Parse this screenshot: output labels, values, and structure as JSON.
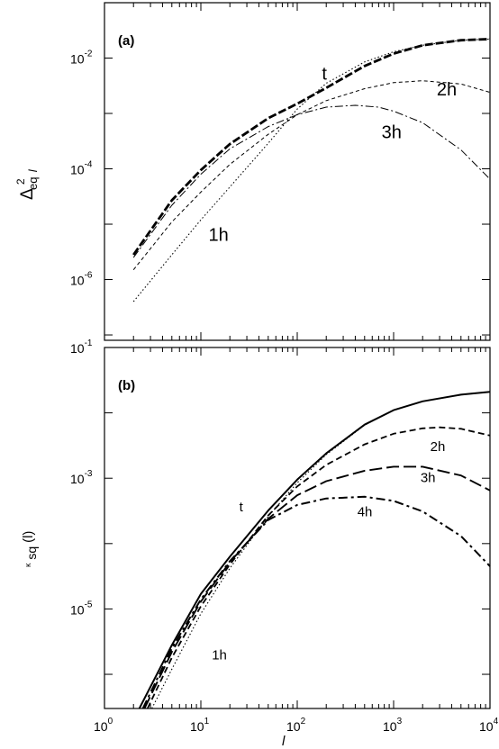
{
  "chart_data": [
    {
      "panel": "(a)",
      "type": "line",
      "ylabel_base": "Δ",
      "ylabel_sup": "2",
      "ylabel_sub": "eq",
      "ylabel_sub_var": "l",
      "xscale": "log",
      "yscale": "log",
      "xlim": [
        1,
        10000
      ],
      "ylim": [
        8e-08,
        0.1
      ],
      "yticks": [
        {
          "value": 1e-06,
          "base": "10",
          "exp": "-6"
        },
        {
          "value": 0.0001,
          "base": "10",
          "exp": "-4"
        },
        {
          "value": 0.01,
          "base": "10",
          "exp": "-2"
        }
      ],
      "grid": false,
      "series": [
        {
          "label": "t",
          "style": "dash-bold",
          "x": [
            2,
            5,
            10,
            20,
            50,
            100,
            200,
            500,
            1000,
            2000,
            5000,
            10000
          ],
          "y": [
            2.8e-06,
            2.7e-05,
            9.5e-05,
            0.00028,
            0.00082,
            0.0015,
            0.0029,
            0.0072,
            0.012,
            0.017,
            0.021,
            0.022
          ]
        },
        {
          "label": "1h",
          "style": "dotted",
          "x": [
            2,
            5,
            10,
            20,
            50,
            100,
            200,
            500,
            1000,
            2000,
            5000,
            10000
          ],
          "y": [
            4e-07,
            2.8e-06,
            1.2e-05,
            4.7e-05,
            0.00029,
            0.0012,
            0.0035,
            0.0085,
            0.013,
            0.017,
            0.021,
            0.022
          ]
        },
        {
          "label": "2h",
          "style": "short-dash",
          "x": [
            2,
            5,
            10,
            20,
            50,
            100,
            200,
            500,
            1000,
            2000,
            5000,
            10000
          ],
          "y": [
            1.5e-06,
            1.1e-05,
            3.8e-05,
            0.00012,
            0.00042,
            0.00095,
            0.0017,
            0.0028,
            0.0036,
            0.0039,
            0.0034,
            0.0024
          ]
        },
        {
          "label": "3h",
          "style": "dash-dot",
          "x": [
            2,
            5,
            10,
            20,
            50,
            100,
            200,
            400,
            700,
            1000,
            2000,
            5000,
            10000
          ],
          "y": [
            2.5e-06,
            2.2e-05,
            8e-05,
            0.00023,
            0.00058,
            0.00095,
            0.0013,
            0.0014,
            0.0013,
            0.0011,
            0.00068,
            0.00022,
            6.5e-05
          ]
        }
      ],
      "annotations": [
        {
          "text": "t",
          "x": 180,
          "y": 0.0041
        },
        {
          "text": "2h",
          "x": 2800,
          "y": 0.0021
        },
        {
          "text": "3h",
          "x": 750,
          "y": 0.00036
        },
        {
          "text": "1h",
          "x": 12,
          "y": 5e-06
        }
      ]
    },
    {
      "panel": "(b)",
      "type": "line",
      "ylabel_base": "κ",
      "ylabel_sub": "sq",
      "ylabel_arg": "(l)",
      "xlabel": "l",
      "xscale": "log",
      "yscale": "log",
      "xlim": [
        1,
        10000
      ],
      "ylim": [
        3e-07,
        0.1
      ],
      "xticks": [
        {
          "value": 1,
          "base": "10",
          "exp": "0"
        },
        {
          "value": 10,
          "base": "10",
          "exp": "1"
        },
        {
          "value": 100,
          "base": "10",
          "exp": "2"
        },
        {
          "value": 1000,
          "base": "10",
          "exp": "3"
        },
        {
          "value": 10000,
          "base": "10",
          "exp": "4"
        }
      ],
      "yticks": [
        {
          "value": 1e-05,
          "base": "10",
          "exp": "-5"
        },
        {
          "value": 0.001,
          "base": "10",
          "exp": "-3"
        },
        {
          "value": 0.1,
          "base": "10",
          "exp": "-1"
        }
      ],
      "grid": false,
      "series": [
        {
          "label": "t",
          "style": "solid",
          "x": [
            2.3,
            5,
            10,
            20,
            50,
            100,
            200,
            500,
            1000,
            2000,
            5000,
            10000
          ],
          "y": [
            3e-07,
            2.8e-06,
            1.7e-05,
            6.3e-05,
            0.00032,
            0.00095,
            0.0024,
            0.0066,
            0.011,
            0.015,
            0.019,
            0.021
          ]
        },
        {
          "label": "1h",
          "style": "dotted",
          "x": [
            3.1,
            5,
            10,
            20,
            50,
            100,
            200,
            500,
            1000,
            2000,
            5000,
            10000
          ],
          "y": [
            3e-07,
            1.2e-06,
            8.5e-06,
            4.2e-05,
            0.00026,
            0.00085,
            0.0023,
            0.0065,
            0.011,
            0.015,
            0.019,
            0.021
          ]
        },
        {
          "label": "2h",
          "style": "dash",
          "x": [
            2.8,
            5,
            10,
            20,
            50,
            100,
            200,
            500,
            1000,
            2000,
            3000,
            5000,
            10000
          ],
          "y": [
            3e-07,
            1.8e-06,
            1.1e-05,
            4.8e-05,
            0.00027,
            0.00075,
            0.0016,
            0.0033,
            0.0048,
            0.0058,
            0.006,
            0.0057,
            0.0045
          ]
        },
        {
          "label": "3h",
          "style": "long-dash",
          "x": [
            2.6,
            5,
            10,
            20,
            50,
            100,
            200,
            500,
            1000,
            2000,
            5000,
            10000
          ],
          "y": [
            3e-07,
            2.2e-06,
            1.3e-05,
            5.2e-05,
            0.00024,
            0.00055,
            0.0009,
            0.0013,
            0.0015,
            0.0015,
            0.0011,
            0.00065
          ]
        },
        {
          "label": "4h",
          "style": "dash-dot",
          "x": [
            2.5,
            5,
            10,
            20,
            50,
            100,
            200,
            500,
            1000,
            2000,
            5000,
            10000
          ],
          "y": [
            3e-07,
            2.5e-06,
            1.4e-05,
            5.4e-05,
            0.00023,
            0.00039,
            0.00049,
            0.00052,
            0.00045,
            0.00031,
            0.00013,
            4.5e-05
          ]
        }
      ],
      "annotations": [
        {
          "text": "t",
          "x": 25,
          "y": 0.00031
        },
        {
          "text": "2h",
          "x": 2400,
          "y": 0.0026
        },
        {
          "text": "3h",
          "x": 1900,
          "y": 0.00087
        },
        {
          "text": "4h",
          "x": 420,
          "y": 0.00026
        },
        {
          "text": "1h",
          "x": 13,
          "y": 1.7e-06
        }
      ]
    }
  ]
}
